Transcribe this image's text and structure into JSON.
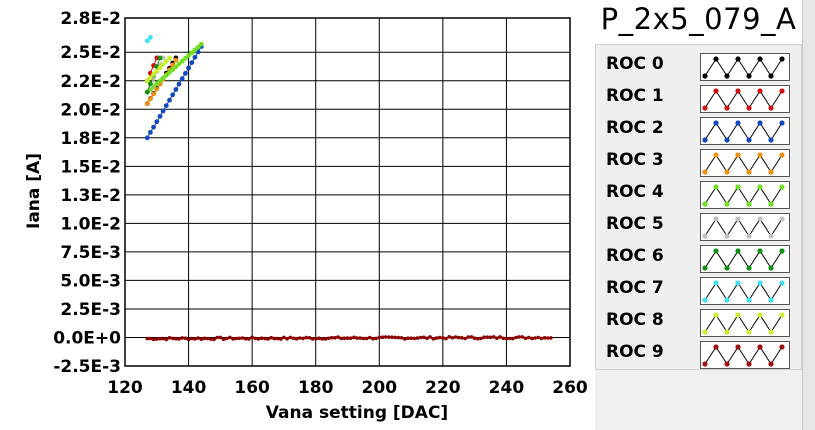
{
  "panel": {
    "title": "P_2x5_079_A",
    "legend": [
      {
        "label": "ROC 0",
        "color": "#000000"
      },
      {
        "label": "ROC 1",
        "color": "#d01010"
      },
      {
        "label": "ROC 2",
        "color": "#1048c0"
      },
      {
        "label": "ROC 3",
        "color": "#f09010"
      },
      {
        "label": "ROC 4",
        "color": "#70e020"
      },
      {
        "label": "ROC 5",
        "color": "#c0c0c0"
      },
      {
        "label": "ROC 6",
        "color": "#109010"
      },
      {
        "label": "ROC 7",
        "color": "#40e0f0"
      },
      {
        "label": "ROC 8",
        "color": "#c8f030"
      },
      {
        "label": "ROC 9",
        "color": "#a01010"
      }
    ]
  },
  "chart_data": {
    "type": "scatter",
    "xlabel": "Vana setting [DAC]",
    "ylabel": "Iana [A]",
    "xlim": [
      120,
      260
    ],
    "ylim": [
      -0.0025,
      0.028
    ],
    "x_ticks": [
      120,
      140,
      160,
      180,
      200,
      220,
      240,
      260
    ],
    "x_tick_labels": [
      "120",
      "140",
      "160",
      "180",
      "200",
      "220",
      "240",
      "260"
    ],
    "y_ticks": [
      -0.0025,
      0.0,
      0.0025,
      0.005,
      0.0075,
      0.01,
      0.0125,
      0.015,
      0.0175,
      0.02,
      0.0225,
      0.025,
      0.028
    ],
    "y_tick_labels": [
      "-2.5E-3",
      "0.0E+0",
      "2.5E-3",
      "5.0E-3",
      "7.5E-3",
      "1.0E-2",
      "1.3E-2",
      "1.5E-2",
      "1.8E-2",
      "2.0E-2",
      "2.2E-2",
      "2.5E-2",
      "2.8E-2"
    ],
    "grid": true,
    "series": [
      {
        "color": "#000000",
        "x_start": 127,
        "x_end": 136,
        "y_start": 0.0205,
        "y_end": 0.0245
      },
      {
        "color": "#d01010",
        "x_start": 127,
        "x_end": 130,
        "y_start": 0.0225,
        "y_end": 0.0245
      },
      {
        "color": "#1048c0",
        "x_start": 127,
        "x_end": 144,
        "y_start": 0.0175,
        "y_end": 0.0255
      },
      {
        "color": "#f09010",
        "x_start": 127,
        "x_end": 136,
        "y_start": 0.0205,
        "y_end": 0.0243
      },
      {
        "color": "#70e020",
        "x_start": 127,
        "x_end": 144,
        "y_start": 0.0215,
        "y_end": 0.0257
      },
      {
        "color": "#c0c0c0",
        "x_start": 127,
        "x_end": 132,
        "y_start": 0.0215,
        "y_end": 0.0245
      },
      {
        "color": "#109010",
        "x_start": 127,
        "x_end": 131,
        "y_start": 0.0215,
        "y_end": 0.0245
      },
      {
        "color": "#40e0f0",
        "x_start": 127,
        "x_end": 128,
        "y_start": 0.026,
        "y_end": 0.0263
      },
      {
        "color": "#c8f030",
        "x_start": 127,
        "x_end": 134,
        "y_start": 0.0225,
        "y_end": 0.0245
      },
      {
        "color": "#8b0000",
        "x_start": 127,
        "x_end": 254,
        "y_start": -0.0001,
        "y_end": 0.0,
        "flat": true
      }
    ]
  }
}
